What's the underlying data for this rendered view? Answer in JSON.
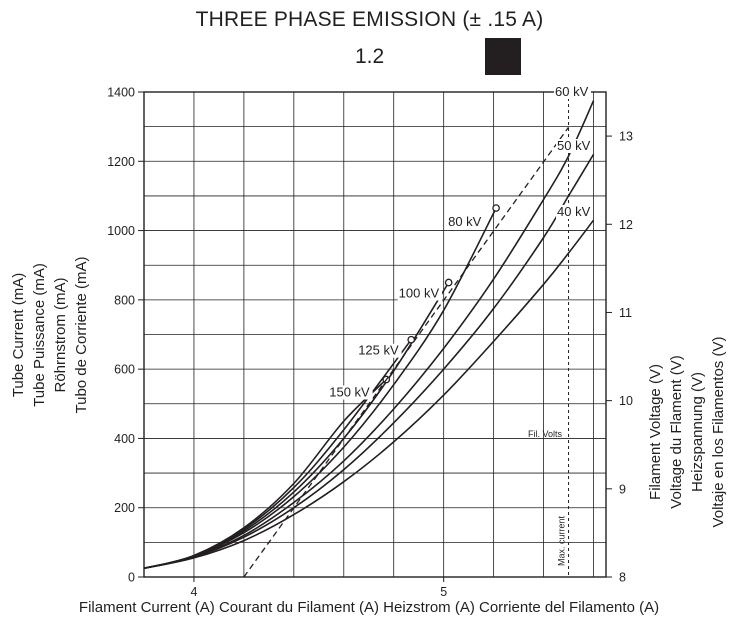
{
  "title": "THREE PHASE EMISSION (± .15 A)",
  "subtitle": "1.2",
  "chart_data": {
    "type": "line",
    "xlabel": "Filament Current (A)  Courant du Filament (A)  Heizstrom (A)  Corriente del Filamento (A)",
    "ylabel_left": [
      "Tube Current (mA)",
      "Tube Puissance (mA)",
      "Röhrnstrom (mA)",
      "Tubo de Corriente (mA)"
    ],
    "ylabel_right": [
      "Filament Voltage (V)",
      "Voltage du Flament  (V)",
      "Heizspannung (V)",
      "Voltaje en los Filamentos (V)"
    ],
    "xlim": [
      3.8,
      5.65
    ],
    "ylim": [
      0,
      1400
    ],
    "y2lim": [
      8,
      13.5
    ],
    "x_ticks": [
      "4",
      "5"
    ],
    "y_ticks": [
      "0",
      "200",
      "400",
      "600",
      "800",
      "1000",
      "1200",
      "1400"
    ],
    "y2_ticks": [
      "8",
      "9",
      "10",
      "11",
      "12",
      "13"
    ],
    "grid": true,
    "series": [
      {
        "name": "60 kV",
        "x": [
          3.8,
          4.0,
          4.2,
          4.4,
          4.6,
          4.8,
          5.0,
          5.2,
          5.4,
          5.5,
          5.6
        ],
        "y": [
          25,
          58,
          120,
          215,
          335,
          485,
          660,
          860,
          1090,
          1215,
          1375
        ]
      },
      {
        "name": "50 kV",
        "x": [
          3.8,
          4.0,
          4.2,
          4.4,
          4.6,
          4.8,
          5.0,
          5.2,
          5.4,
          5.5,
          5.6
        ],
        "y": [
          25,
          57,
          115,
          200,
          310,
          445,
          600,
          775,
          980,
          1100,
          1220
        ]
      },
      {
        "name": "40 kV",
        "x": [
          3.8,
          4.0,
          4.2,
          4.4,
          4.6,
          4.8,
          5.0,
          5.2,
          5.4,
          5.5,
          5.6
        ],
        "y": [
          25,
          55,
          105,
          180,
          275,
          390,
          525,
          680,
          845,
          935,
          1030
        ]
      },
      {
        "name": "80 kV",
        "x": [
          3.8,
          4.0,
          4.2,
          4.4,
          4.6,
          4.8,
          5.0,
          5.21
        ],
        "y": [
          25,
          59,
          128,
          232,
          375,
          555,
          770,
          1065
        ],
        "end_marker": true
      },
      {
        "name": "100 kV",
        "x": [
          3.8,
          4.0,
          4.2,
          4.4,
          4.6,
          4.8,
          5.02
        ],
        "y": [
          25,
          60,
          133,
          245,
          400,
          595,
          850
        ],
        "end_marker": true
      },
      {
        "name": "125 kV",
        "x": [
          3.8,
          4.0,
          4.2,
          4.4,
          4.6,
          4.87
        ],
        "y": [
          25,
          61,
          138,
          258,
          425,
          685
        ],
        "end_marker": true
      },
      {
        "name": "150 kV",
        "x": [
          3.8,
          4.0,
          4.2,
          4.4,
          4.6,
          4.77
        ],
        "y": [
          25,
          62,
          142,
          270,
          450,
          570
        ],
        "end_marker": true
      }
    ],
    "fil_volts": {
      "name": "Fil. Volts",
      "x": [
        4.2,
        5.5
      ],
      "y_volts": [
        8.0,
        13.1
      ]
    },
    "max_current": {
      "name": "Max. current",
      "x": 5.5
    }
  }
}
